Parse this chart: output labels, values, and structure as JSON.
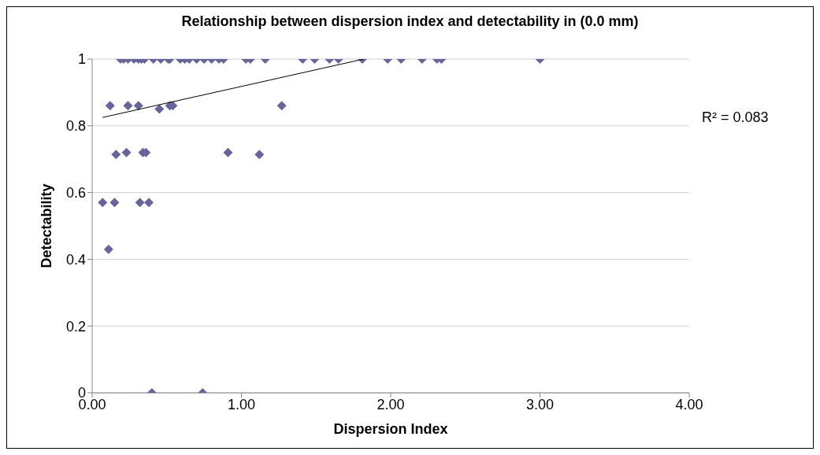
{
  "chart_data": {
    "type": "scatter",
    "title": "Relationship between dispersion index and detectability in (0.0 mm)",
    "xlabel": "Dispersion Index",
    "ylabel": "Detectability",
    "series": [
      {
        "color": "#65659b",
        "marker": "diamond",
        "x": [
          0.19,
          0.21,
          0.24,
          0.28,
          0.31,
          0.33,
          0.35,
          0.41,
          0.46,
          0.51,
          0.52,
          0.59,
          0.62,
          0.65,
          0.7,
          0.75,
          0.8,
          0.85,
          0.88,
          1.03,
          1.06,
          1.16,
          1.41,
          1.49,
          1.59,
          1.65,
          1.81,
          1.98,
          2.07,
          2.21,
          2.31,
          2.34,
          3.0,
          0.12,
          0.24,
          0.31,
          0.45,
          0.52,
          0.54,
          1.27,
          0.16,
          0.23,
          0.34,
          0.36,
          0.91,
          1.12,
          0.07,
          0.15,
          0.32,
          0.38,
          0.11,
          0.4,
          0.74
        ],
        "values": [
          1,
          1,
          1,
          1,
          1,
          1,
          1,
          1,
          1,
          1,
          1,
          1,
          1,
          1,
          1,
          1,
          1,
          1,
          1,
          1,
          1,
          1,
          1,
          1,
          1,
          1,
          1,
          1,
          1,
          1,
          1,
          1,
          1,
          0.86,
          0.86,
          0.86,
          0.85,
          0.86,
          0.86,
          0.86,
          0.714,
          0.72,
          0.72,
          0.72,
          0.72,
          0.714,
          0.57,
          0.57,
          0.57,
          0.57,
          0.43,
          0,
          0
        ]
      },
      {
        "type": "line",
        "color": "#000000",
        "x": [
          0.07,
          1.82
        ],
        "values": [
          0.825,
          1.0
        ]
      }
    ],
    "xlim": [
      0,
      4
    ],
    "xticks": [
      {
        "value": 0,
        "label": "0.00"
      },
      {
        "value": 1,
        "label": "1.00"
      },
      {
        "value": 2,
        "label": "2.00"
      },
      {
        "value": 3,
        "label": "3.00"
      },
      {
        "value": 4,
        "label": "4.00"
      }
    ],
    "ylim": [
      0,
      1
    ],
    "yticks": [
      0,
      0.2,
      0.4,
      0.6,
      0.8,
      1
    ],
    "grid": "y",
    "annotations": [
      "R² = 0.083"
    ]
  }
}
